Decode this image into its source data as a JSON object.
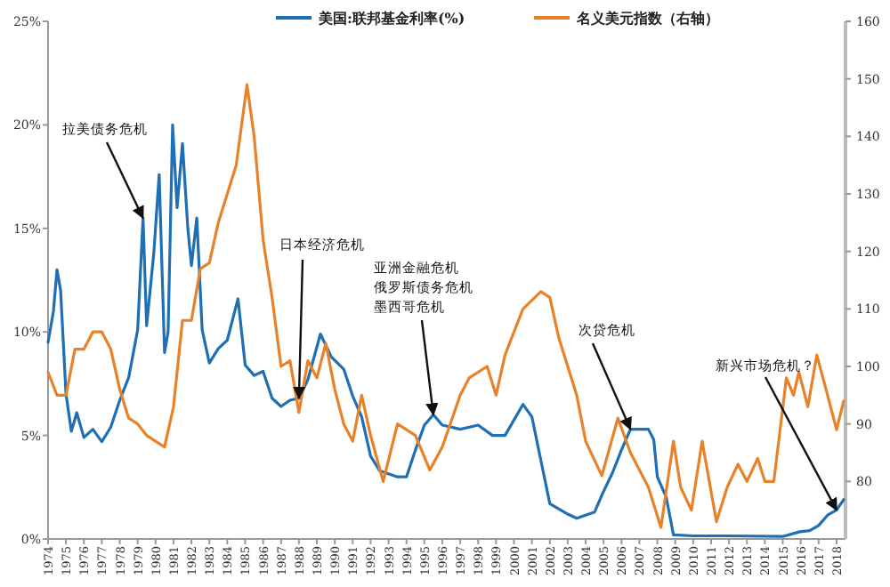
{
  "chart_data": {
    "type": "line",
    "legend": "top",
    "xlim": [
      1974,
      2018.5
    ],
    "xticks": [
      1974,
      1975,
      1976,
      1977,
      1978,
      1979,
      1980,
      1981,
      1982,
      1983,
      1984,
      1985,
      1986,
      1987,
      1988,
      1989,
      1990,
      1991,
      1992,
      1993,
      1994,
      1995,
      1996,
      1997,
      1998,
      1999,
      2000,
      2001,
      2002,
      2003,
      2004,
      2005,
      2006,
      2007,
      2008,
      2009,
      2010,
      2011,
      2012,
      2013,
      2014,
      2015,
      2016,
      2017,
      2018
    ],
    "ylim": [
      0,
      25
    ],
    "yticks": [
      {
        "value": 0,
        "label": "0%"
      },
      {
        "value": 5,
        "label": "5%"
      },
      {
        "value": 10,
        "label": "10%"
      },
      {
        "value": 15,
        "label": "15%"
      },
      {
        "value": 20,
        "label": "20%"
      },
      {
        "value": 25,
        "label": "25%"
      }
    ],
    "y2lim": [
      70,
      160
    ],
    "y2ticks": [
      80,
      90,
      100,
      110,
      120,
      130,
      140,
      150,
      160
    ],
    "series": [
      {
        "name": "美国:联邦基金利率(%)",
        "color": "#1f6fb4",
        "x": [
          1974.0,
          1974.3,
          1974.5,
          1974.7,
          1975.0,
          1975.3,
          1975.6,
          1976.0,
          1976.5,
          1977.0,
          1977.5,
          1978.0,
          1978.5,
          1979.0,
          1979.3,
          1979.5,
          1979.9,
          1980.2,
          1980.5,
          1980.7,
          1980.95,
          1981.2,
          1981.5,
          1981.8,
          1982.0,
          1982.3,
          1982.6,
          1983.0,
          1983.5,
          1984.0,
          1984.6,
          1985.0,
          1985.5,
          1986.0,
          1986.5,
          1987.0,
          1987.5,
          1988.0,
          1988.5,
          1989.2,
          1989.8,
          1990.5,
          1991.0,
          1991.5,
          1992.0,
          1992.5,
          1993.5,
          1994.0,
          1994.5,
          1995.0,
          1995.5,
          1996.0,
          1997.0,
          1998.0,
          1998.8,
          1999.5,
          2000.5,
          2001.0,
          2001.5,
          2002.0,
          2003.0,
          2003.5,
          2004.5,
          2005.0,
          2005.5,
          2006.0,
          2006.5,
          2007.5,
          2007.8,
          2008.0,
          2008.5,
          2008.9,
          2010.0,
          2012.0,
          2015.0,
          2015.95,
          2016.5,
          2017.0,
          2017.5,
          2018.0,
          2018.4
        ],
        "values": [
          9.5,
          11,
          13,
          12,
          7,
          5.2,
          6.1,
          4.9,
          5.3,
          4.7,
          5.4,
          6.7,
          7.8,
          10.1,
          15.5,
          10.3,
          13.8,
          17.6,
          9,
          10,
          20,
          16,
          19.1,
          15,
          13.2,
          15.5,
          10.1,
          8.5,
          9.2,
          9.6,
          11.6,
          8.4,
          7.9,
          8.1,
          6.8,
          6.4,
          6.7,
          6.8,
          7.7,
          9.9,
          8.8,
          8.2,
          6.9,
          5.9,
          4,
          3.3,
          3,
          3,
          4.3,
          5.5,
          6,
          5.5,
          5.3,
          5.5,
          5,
          5,
          6.5,
          5.9,
          3.8,
          1.7,
          1.2,
          1,
          1.3,
          2.3,
          3.2,
          4.3,
          5.3,
          5.3,
          4.8,
          3,
          2,
          0.2,
          0.15,
          0.15,
          0.12,
          0.35,
          0.4,
          0.65,
          1.15,
          1.4,
          1.9
        ]
      },
      {
        "name": "名义美元指数（右轴）",
        "color": "#e8822a",
        "axis": "y2",
        "x": [
          1974.0,
          1974.5,
          1975.0,
          1975.5,
          1976.0,
          1976.5,
          1977.0,
          1977.5,
          1978.0,
          1978.5,
          1979.0,
          1979.5,
          1980.0,
          1980.5,
          1981.0,
          1981.5,
          1982.0,
          1982.5,
          1983.0,
          1983.5,
          1984.0,
          1984.5,
          1985.1,
          1985.5,
          1986.0,
          1986.5,
          1987.0,
          1987.5,
          1988.0,
          1988.5,
          1989.0,
          1989.5,
          1990.0,
          1990.5,
          1991.0,
          1991.5,
          1992.0,
          1992.7,
          1993.5,
          1994.5,
          1995.3,
          1996.0,
          1997.0,
          1997.5,
          1998.5,
          1999.0,
          1999.5,
          2000.5,
          2001.5,
          2002.0,
          2002.5,
          2003.0,
          2003.5,
          2004.0,
          2004.9,
          2005.8,
          2006.5,
          2007.5,
          2008.2,
          2008.9,
          2009.3,
          2009.9,
          2010.5,
          2011.3,
          2011.9,
          2012.5,
          2013.0,
          2013.6,
          2014.0,
          2014.5,
          2015.2,
          2015.6,
          2015.9,
          2016.4,
          2016.9,
          2017.5,
          2018.0,
          2018.4
        ],
        "values": [
          99,
          95,
          95,
          103,
          103,
          106,
          106,
          103,
          96,
          91,
          90,
          88,
          87,
          86,
          93,
          108,
          108,
          117,
          118,
          125,
          130,
          135,
          149,
          140,
          122,
          112,
          100,
          101,
          92,
          101,
          98,
          104,
          96,
          90,
          87,
          95,
          88,
          80,
          90,
          88,
          82,
          86,
          95,
          98,
          100,
          95,
          102,
          110,
          113,
          112,
          105,
          100,
          95,
          87,
          81,
          91,
          85,
          79,
          72,
          87,
          79,
          75,
          87,
          73,
          79,
          83,
          80,
          84,
          80,
          80,
          98,
          95,
          99,
          93,
          102,
          95,
          89,
          94
        ]
      }
    ],
    "annotations": [
      {
        "text": "拉美债务危机",
        "x": 1979.3,
        "y": 15.5
      },
      {
        "text": "日本经济危机",
        "x": 1988,
        "y": 6.8
      },
      "亚洲金融危机",
      "俄罗斯债务危机",
      {
        "text": "墨西哥危机",
        "x": 1995.5,
        "y": 6
      },
      {
        "text": "次贷危机",
        "x": 2006.5,
        "y": 5.3
      },
      {
        "text": "新兴市场危机？",
        "x": 2018,
        "y": 1.4
      }
    ]
  }
}
